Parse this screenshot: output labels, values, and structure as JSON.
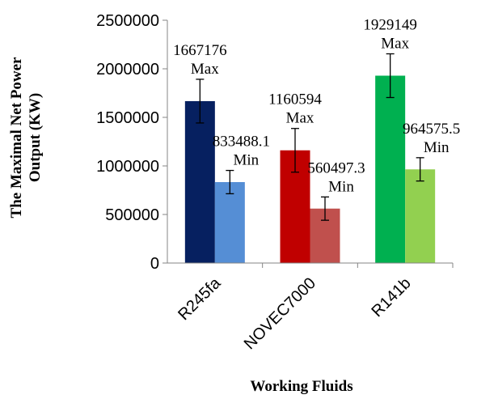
{
  "chart_data": {
    "type": "bar",
    "categories": [
      "R245fa",
      "NOVEC7000",
      "R141b"
    ],
    "series": [
      {
        "values": [
          1667176,
          1160594,
          1929149
        ],
        "labels": [
          "Max",
          "Max",
          "Max"
        ],
        "value_labels": [
          "1667176",
          "1160594",
          "1929149"
        ],
        "error": [
          225000,
          225000,
          225000
        ],
        "colors": [
          "#062060",
          "#c00000",
          "#00b050"
        ]
      },
      {
        "values": [
          833488.1,
          560497.3,
          964575.5
        ],
        "labels": [
          "Min",
          "Min",
          "Min"
        ],
        "value_labels": [
          "833488.1",
          "560497.3",
          "964575.5"
        ],
        "error": [
          120000,
          120000,
          120000
        ],
        "colors": [
          "#558ed5",
          "#c0504d",
          "#92d050"
        ]
      }
    ],
    "xlabel": "Working Fluids",
    "ylabel_line1": "The Maximal Net Power",
    "ylabel_line2": "Output (KW)",
    "ylim": [
      0,
      2500000
    ],
    "yticks": [
      "0",
      "500000",
      "1000000",
      "1500000",
      "2000000",
      "2500000"
    ],
    "grid": false,
    "legend": "none"
  }
}
